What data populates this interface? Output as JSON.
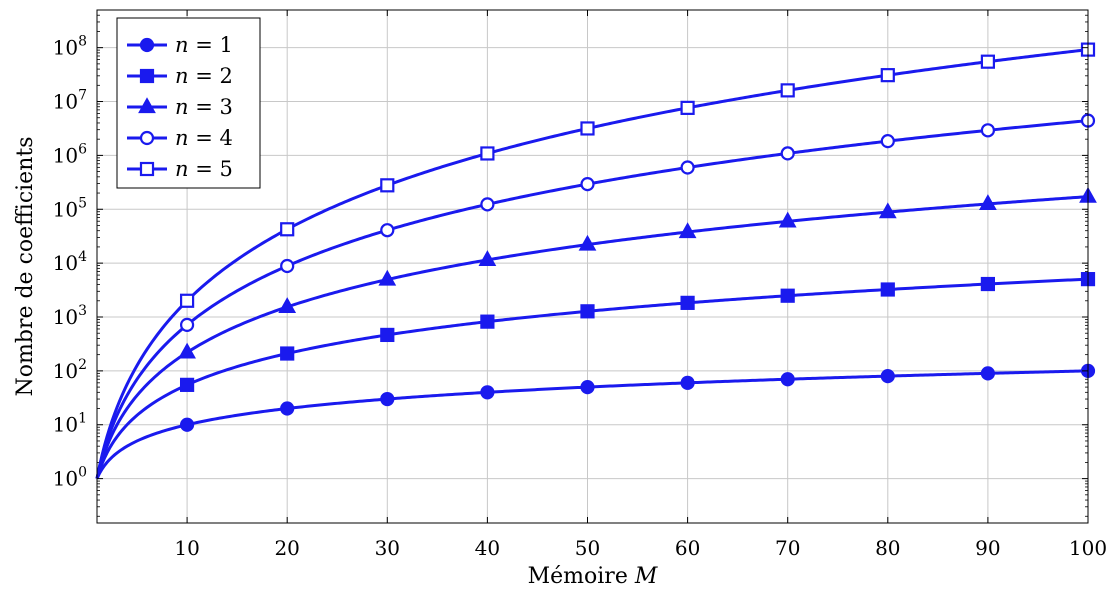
{
  "chart_data": {
    "type": "line",
    "xlabel": "Mémoire",
    "xlabel_var": "M",
    "ylabel": "Nombre de coefficients",
    "xlim": [
      1,
      100
    ],
    "ylim": [
      0.15,
      500000000
    ],
    "yscale": "log",
    "grid": true,
    "legend_position": "top-left",
    "xticks": [
      10,
      20,
      30,
      40,
      50,
      60,
      70,
      80,
      90,
      100
    ],
    "yticks": [
      {
        "base": "10",
        "exp": "0",
        "value": 1
      },
      {
        "base": "10",
        "exp": "1",
        "value": 10
      },
      {
        "base": "10",
        "exp": "2",
        "value": 100
      },
      {
        "base": "10",
        "exp": "3",
        "value": 1000
      },
      {
        "base": "10",
        "exp": "4",
        "value": 10000
      },
      {
        "base": "10",
        "exp": "5",
        "value": 100000
      },
      {
        "base": "10",
        "exp": "6",
        "value": 1000000
      },
      {
        "base": "10",
        "exp": "7",
        "value": 10000000
      },
      {
        "base": "10",
        "exp": "8",
        "value": 100000000
      }
    ],
    "x": [
      10,
      20,
      30,
      40,
      50,
      60,
      70,
      80,
      90,
      100
    ],
    "series": [
      {
        "name": "n = 1",
        "var": "n",
        "eq": " = 1",
        "marker": "circle",
        "fill": "filled",
        "values": [
          10,
          20,
          30,
          40,
          50,
          60,
          70,
          80,
          90,
          100
        ]
      },
      {
        "name": "n = 2",
        "var": "n",
        "eq": " = 2",
        "marker": "square",
        "fill": "filled",
        "values": [
          55,
          210,
          465,
          820,
          1275,
          1830,
          2485,
          3240,
          4095,
          5050
        ]
      },
      {
        "name": "n = 3",
        "var": "n",
        "eq": " = 3",
        "marker": "triangle",
        "fill": "filled",
        "values": [
          220,
          1540,
          4960,
          11480,
          22100,
          37820,
          59640,
          88560,
          125580,
          171700
        ]
      },
      {
        "name": "n = 4",
        "var": "n",
        "eq": " = 4",
        "marker": "circle",
        "fill": "open",
        "values": [
          715,
          8855,
          40920,
          123410,
          292825,
          595665,
          1088430,
          1837620,
          2919735,
          4421275
        ]
      },
      {
        "name": "n = 5",
        "var": "n",
        "eq": " = 5",
        "marker": "square",
        "fill": "open",
        "values": [
          2002,
          42504,
          278256,
          1086008,
          3162510,
          7624512,
          16108764,
          30872016,
          54891018,
          91962520
        ]
      }
    ],
    "color": "#1a1aee"
  }
}
